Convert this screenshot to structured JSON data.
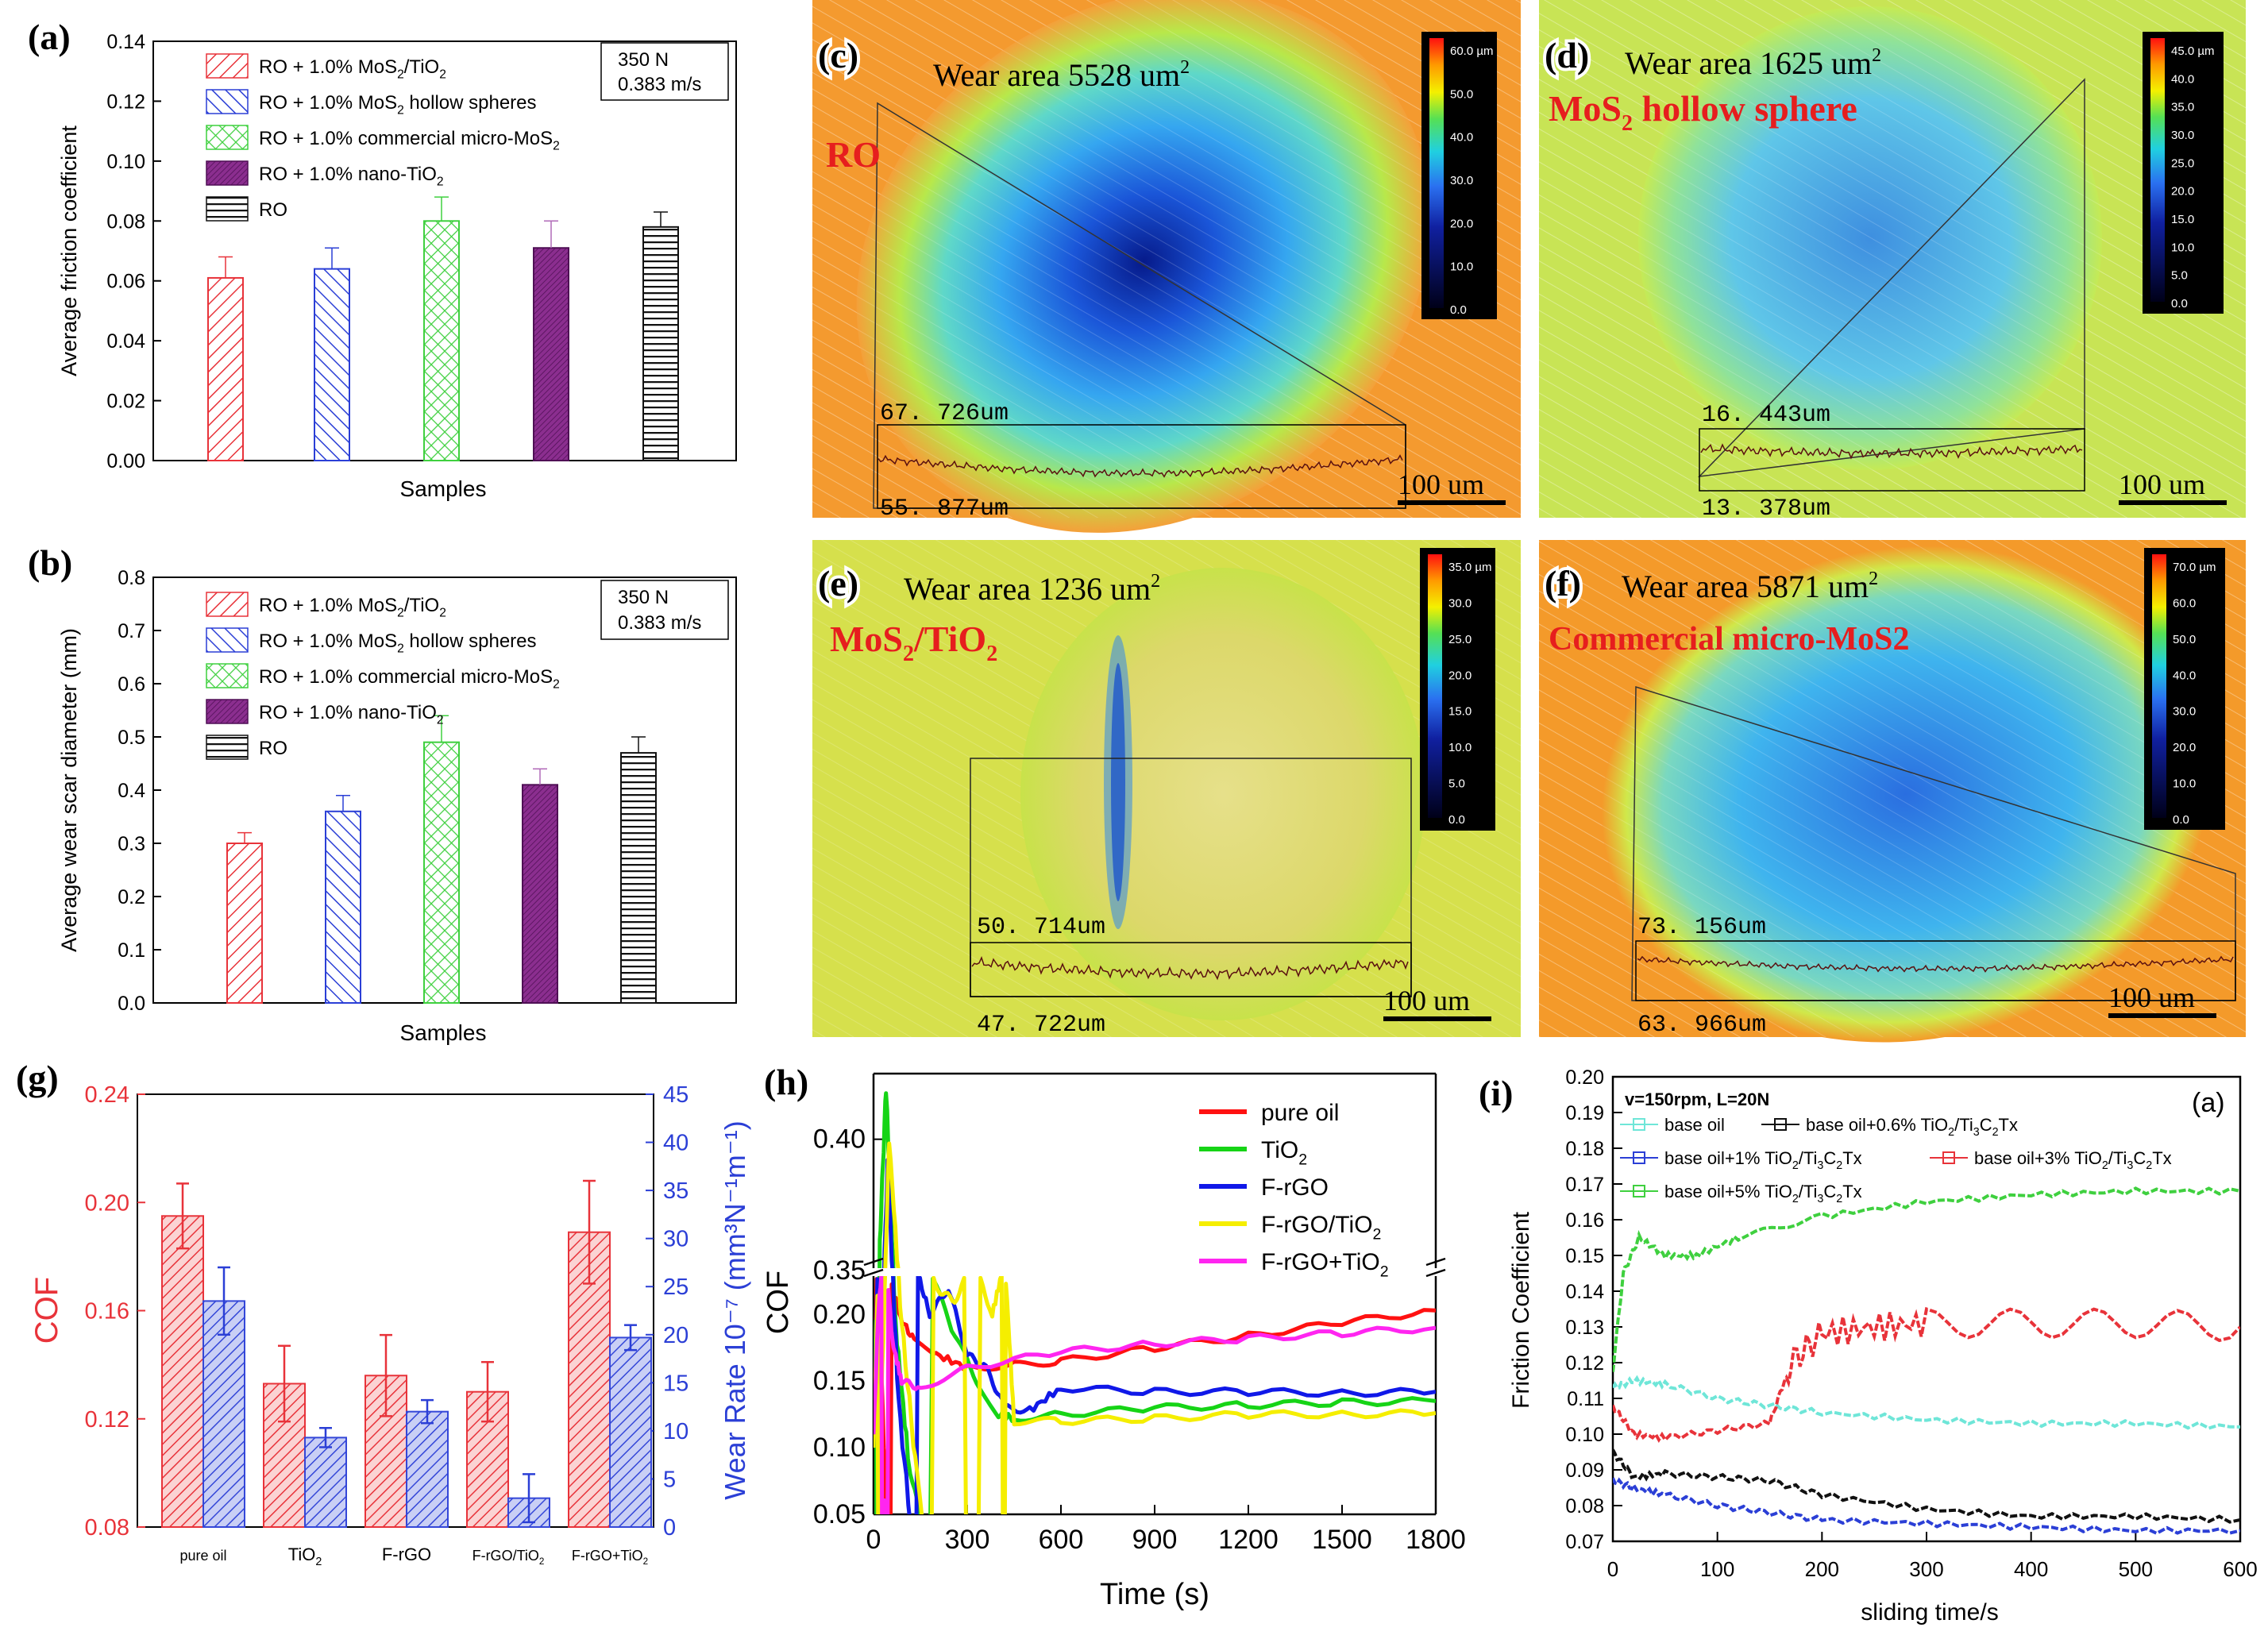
{
  "colors": {
    "red": "#e8333a",
    "blue": "#2b3fd6",
    "green": "#3fd03f",
    "purple": "#8b2e8f",
    "black": "#111111",
    "cyan": "#6fe6d8",
    "yellow": "#f4f000",
    "magenta": "#ff2cf0",
    "teal": "#2f8fd8",
    "orange": "#f59a2a"
  },
  "charts": {
    "a": {
      "panel": "(a)",
      "type": "bar",
      "ylabel": "Average friction coefficient",
      "xlabel": "Samples",
      "ylim": [
        0,
        0.14
      ],
      "ticks": [
        "0.00",
        "0.02",
        "0.04",
        "0.06",
        "0.08",
        "0.10",
        "0.12",
        "0.14"
      ],
      "legend": [
        "RO + 1.0% MoS2/TiO2",
        "RO + 1.0% MoS2 hollow spheres",
        "RO + 1.0% commercial micro-MoS2",
        "RO + 1.0% nano-TiO2",
        "RO"
      ],
      "condition": [
        "350 N",
        "0.383 m/s"
      ],
      "values": [
        0.061,
        0.064,
        0.08,
        0.071,
        0.078
      ],
      "errors": [
        0.007,
        0.007,
        0.008,
        0.009,
        0.005
      ]
    },
    "b": {
      "panel": "(b)",
      "type": "bar",
      "ylabel": "Average wear scar diameter (mm)",
      "xlabel": "Samples",
      "ylim": [
        0,
        0.8
      ],
      "ticks": [
        "0.0",
        "0.1",
        "0.2",
        "0.3",
        "0.4",
        "0.5",
        "0.6",
        "0.7",
        "0.8"
      ],
      "legend": [
        "RO + 1.0% MoS2/TiO2",
        "RO + 1.0% MoS2 hollow spheres",
        "RO + 1.0% commercial micro-MoS2",
        "RO + 1.0% nano-TiO2",
        "RO"
      ],
      "condition": [
        "350 N",
        "0.383 m/s"
      ],
      "values": [
        0.3,
        0.36,
        0.49,
        0.41,
        0.47
      ],
      "errors": [
        0.02,
        0.03,
        0.05,
        0.03,
        0.03
      ]
    },
    "g": {
      "panel": "(g)",
      "type": "bar",
      "ylabel_left": "COF",
      "ylabel_right": "Wear Rate 10⁻⁷ (mm³N⁻¹m⁻¹)",
      "categories": [
        "pure oil",
        "TiO2",
        "F-rGO",
        "F-rGO/TiO2",
        "F-rGO+TiO2"
      ],
      "ylim_left": [
        0.08,
        0.24
      ],
      "ticks_left": [
        "0.08",
        "0.12",
        "0.16",
        "0.20",
        "0.24"
      ],
      "ylim_right": [
        0,
        45
      ],
      "ticks_right": [
        "0",
        "5",
        "10",
        "15",
        "20",
        "25",
        "30",
        "35",
        "40",
        "45"
      ],
      "cof": [
        0.195,
        0.133,
        0.136,
        0.13,
        0.189
      ],
      "cof_err": [
        0.012,
        0.014,
        0.015,
        0.011,
        0.019
      ],
      "wear": [
        23.5,
        9.3,
        12.0,
        3.0,
        19.7
      ],
      "wear_err": [
        3.5,
        1.0,
        1.2,
        2.5,
        1.3
      ]
    },
    "h": {
      "panel": "(h)",
      "type": "line",
      "xlabel": "Time (s)",
      "ylabel": "COF",
      "xticks": [
        "0",
        "300",
        "600",
        "900",
        "1200",
        "1500",
        "1800"
      ],
      "yticks_low": [
        "0.05",
        "0.10",
        "0.15",
        "0.20"
      ],
      "yticks_high": [
        "0.35",
        "0.40"
      ],
      "series": [
        {
          "name": "pure oil",
          "color": "#ff1111",
          "x": [
            0,
            20,
            45,
            80,
            130,
            200,
            300,
            450,
            600,
            900,
            1200,
            1500,
            1800
          ],
          "y": [
            0.12,
            0.33,
            0.24,
            0.2,
            0.18,
            0.17,
            0.16,
            0.162,
            0.165,
            0.175,
            0.184,
            0.194,
            0.203
          ]
        },
        {
          "name": "TiO2",
          "color": "#16d416",
          "x": [
            0,
            20,
            40,
            70,
            110,
            170,
            250,
            330,
            400,
            450,
            600,
            900,
            1200,
            1500,
            1800
          ],
          "y": [
            0.1,
            0.36,
            0.42,
            0.33,
            0.28,
            0.24,
            0.19,
            0.15,
            0.125,
            0.122,
            0.125,
            0.13,
            0.132,
            0.134,
            0.135
          ]
        },
        {
          "name": "F-rGO",
          "color": "#1018e8",
          "x": [
            0,
            20,
            45,
            80,
            130,
            180,
            240,
            300,
            360,
            420,
            500,
            600,
            900,
            1200,
            1500,
            1800
          ],
          "y": [
            0.1,
            0.3,
            0.39,
            0.3,
            0.24,
            0.2,
            0.22,
            0.17,
            0.16,
            0.13,
            0.128,
            0.145,
            0.142,
            0.142,
            0.141,
            0.142
          ]
        },
        {
          "name": "F-rGO/TiO2",
          "color": "#f5ee00",
          "x": [
            0,
            20,
            50,
            90,
            140,
            200,
            260,
            320,
            380,
            420,
            450,
            600,
            900,
            1200,
            1500,
            1800
          ],
          "y": [
            0.1,
            0.28,
            0.4,
            0.33,
            0.27,
            0.22,
            0.21,
            0.24,
            0.2,
            0.24,
            0.12,
            0.12,
            0.122,
            0.125,
            0.125,
            0.126
          ]
        },
        {
          "name": "F-rGO+TiO2",
          "color": "#ff25f0",
          "x": [
            0,
            15,
            35,
            60,
            90,
            150,
            300,
            600,
            900,
            1200,
            1500,
            1800
          ],
          "y": [
            0.11,
            0.2,
            0.26,
            0.18,
            0.15,
            0.145,
            0.16,
            0.172,
            0.178,
            0.182,
            0.186,
            0.19
          ]
        }
      ]
    },
    "i": {
      "panel": "(i)",
      "type": "line",
      "xlabel": "sliding time/s",
      "ylabel": "Friction Coefficient",
      "condition": "v=150rpm, L=20N",
      "tag": "(a)",
      "xticks": [
        "0",
        "100",
        "200",
        "300",
        "400",
        "500",
        "600"
      ],
      "yticks": [
        "0.07",
        "0.08",
        "0.09",
        "0.10",
        "0.11",
        "0.12",
        "0.13",
        "0.14",
        "0.15",
        "0.16",
        "0.17",
        "0.18",
        "0.19",
        "0.20"
      ],
      "series": [
        {
          "name": "base oil",
          "color": "#6fe6d8",
          "x": [
            0,
            20,
            50,
            100,
            150,
            200,
            300,
            400,
            500,
            600
          ],
          "y": [
            0.113,
            0.115,
            0.114,
            0.11,
            0.108,
            0.106,
            0.104,
            0.103,
            0.103,
            0.102
          ]
        },
        {
          "name": "base oil+0.6% TiO2/Ti3C2Tx",
          "color": "#111111",
          "x": [
            0,
            20,
            50,
            100,
            150,
            200,
            300,
            400,
            500,
            600
          ],
          "y": [
            0.095,
            0.088,
            0.089,
            0.088,
            0.087,
            0.083,
            0.079,
            0.077,
            0.077,
            0.076
          ]
        },
        {
          "name": "base oil+1% TiO2/Ti3C2Tx",
          "color": "#2b3fd6",
          "x": [
            0,
            20,
            50,
            100,
            150,
            200,
            300,
            400,
            500,
            600
          ],
          "y": [
            0.087,
            0.085,
            0.083,
            0.08,
            0.078,
            0.076,
            0.075,
            0.074,
            0.073,
            0.073
          ]
        },
        {
          "name": "base oil+3% TiO2/Ti3C2Tx",
          "color": "#e8333a",
          "x": [
            0,
            20,
            50,
            100,
            150,
            170,
            200,
            250,
            300,
            400,
            500,
            600
          ],
          "y": [
            0.108,
            0.1,
            0.099,
            0.101,
            0.103,
            0.12,
            0.128,
            0.13,
            0.131,
            0.131,
            0.131,
            0.13
          ]
        },
        {
          "name": "base oil+5% TiO2/Ti3C2Tx",
          "color": "#3fd03f",
          "x": [
            0,
            10,
            25,
            50,
            80,
            120,
            200,
            300,
            400,
            500,
            600
          ],
          "y": [
            0.118,
            0.145,
            0.155,
            0.15,
            0.15,
            0.155,
            0.161,
            0.165,
            0.167,
            0.168,
            0.168
          ]
        }
      ]
    }
  },
  "maps": {
    "c": {
      "panel": "(c)",
      "label": "RO",
      "area": "Wear area 5528 um",
      "sup": "2",
      "top": "67. 726um",
      "bottom": "55. 877um",
      "scale": "100 um",
      "bar_ticks": [
        "60.0 µm",
        "50.0",
        "40.0",
        "30.0",
        "20.0",
        "10.0",
        "0.0"
      ]
    },
    "d": {
      "panel": "(d)",
      "label": "MoS",
      "label_sub": "2",
      "label_tail": " hollow sphere",
      "area": "Wear area 1625 um",
      "sup": "2",
      "top": "16. 443um",
      "bottom": "13. 378um",
      "scale": "100 um",
      "bar_ticks": [
        "45.0 µm",
        "40.0",
        "35.0",
        "30.0",
        "25.0",
        "20.0",
        "15.0",
        "10.0",
        "5.0",
        "0.0"
      ]
    },
    "e": {
      "panel": "(e)",
      "label": "MoS",
      "label_sub": "2",
      "label_tail": "/TiO",
      "label_sub2": "2",
      "area": "Wear area 1236 um",
      "sup": "2",
      "top": "50. 714um",
      "bottom": "47. 722um",
      "scale": "100 um",
      "bar_ticks": [
        "35.0 µm",
        "30.0",
        "25.0",
        "20.0",
        "15.0",
        "10.0",
        "5.0",
        "0.0"
      ]
    },
    "f": {
      "panel": "(f)",
      "label": "Commercial micro-MoS2",
      "area": "Wear area 5871 um",
      "sup": "2",
      "top": "73. 156um",
      "bottom": "63. 966um",
      "scale": "100 um",
      "bar_ticks": [
        "70.0 µm",
        "60.0",
        "50.0",
        "40.0",
        "30.0",
        "20.0",
        "10.0",
        "0.0"
      ]
    }
  }
}
